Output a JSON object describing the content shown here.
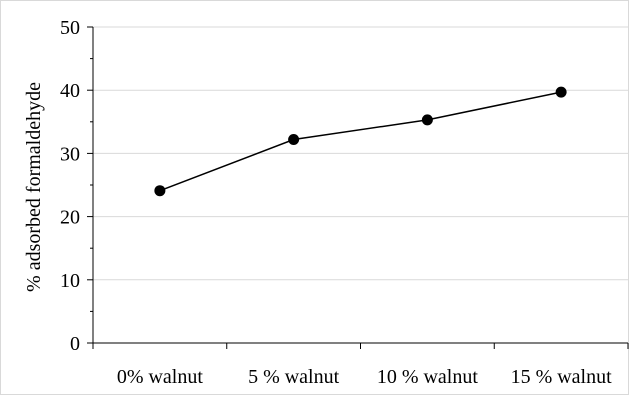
{
  "chart_data": {
    "type": "line",
    "title": "",
    "xlabel": "",
    "ylabel": "% adsorbed formaldehyde",
    "categories": [
      "0% walnut",
      "5 % walnut",
      "10 % walnut",
      "15 % walnut"
    ],
    "series": [
      {
        "values": [
          24.1,
          32.2,
          35.3,
          39.7
        ],
        "color": "#000000",
        "marker": "circle"
      }
    ],
    "ylim": [
      0,
      50
    ],
    "yticks": [
      0,
      10,
      20,
      30,
      40,
      50
    ],
    "grid": true,
    "gridlines": "horizontal",
    "legend": "none"
  }
}
